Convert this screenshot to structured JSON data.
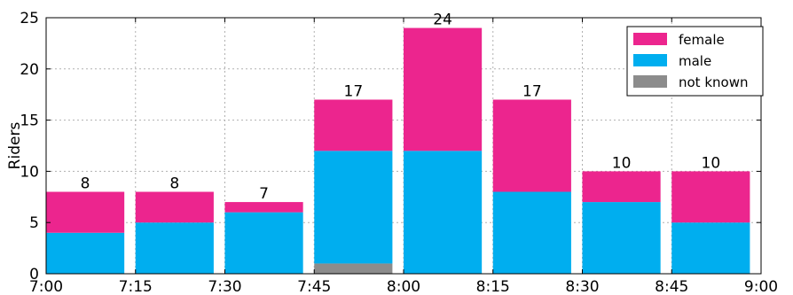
{
  "chart_data": {
    "type": "bar",
    "stacked": true,
    "x_ticks": [
      "7:00",
      "7:15",
      "7:30",
      "7:45",
      "8:00",
      "8:15",
      "8:30",
      "8:45",
      "9:00"
    ],
    "ylabel": "Riders",
    "ylim": [
      0,
      25
    ],
    "y_ticks": [
      0,
      5,
      10,
      15,
      20,
      25
    ],
    "grid": true,
    "legend_position": "top-right",
    "series": [
      {
        "name": "not known",
        "color": "#8c8c8c",
        "values": [
          0,
          0,
          0,
          1,
          0,
          0,
          0,
          0
        ]
      },
      {
        "name": "male",
        "color": "#00aeef",
        "values": [
          4,
          5,
          6,
          11,
          12,
          8,
          7,
          5
        ]
      },
      {
        "name": "female",
        "color": "#ec258e",
        "values": [
          4,
          3,
          1,
          5,
          12,
          9,
          3,
          5
        ]
      }
    ],
    "legend_order": [
      "female",
      "male",
      "not known"
    ],
    "totals": [
      "8",
      "8",
      "7",
      "17",
      "24",
      "17",
      "10",
      "10"
    ]
  }
}
